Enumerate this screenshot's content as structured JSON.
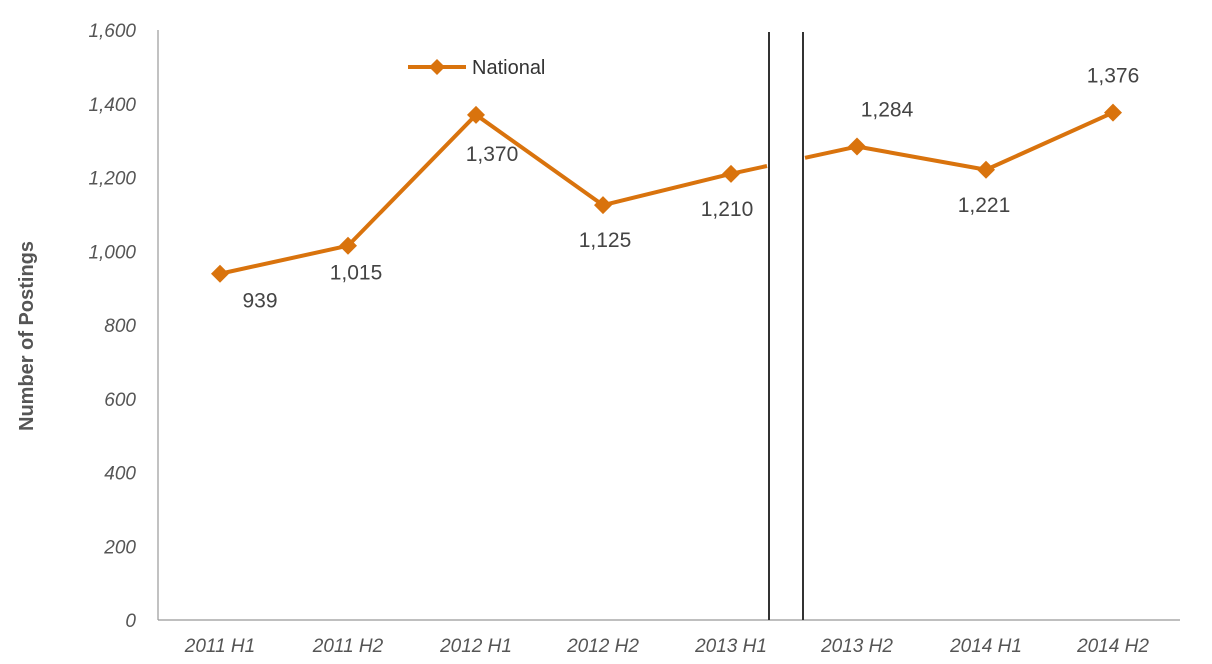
{
  "chart_data": {
    "type": "line",
    "title": "",
    "xlabel": "",
    "ylabel": "Number of Postings",
    "ylim": [
      0,
      1600
    ],
    "yticks": [
      0,
      200,
      400,
      600,
      800,
      1000,
      1200,
      1400,
      1600
    ],
    "ytick_labels": [
      "0",
      "200",
      "400",
      "600",
      "800",
      "1,000",
      "1,200",
      "1,400",
      "1,600"
    ],
    "grid": false,
    "legend": "top-center",
    "axis_break": "between 2013 H1 and 2013 H2",
    "categories": [
      "2011 H1",
      "2011 H2",
      "2012 H1",
      "2012 H2",
      "2013 H1",
      "2013 H2",
      "2014 H1",
      "2014 H2"
    ],
    "series": [
      {
        "name": "National",
        "color": "#D9730D",
        "values": [
          939,
          1015,
          1370,
          1125,
          1210,
          1284,
          1221,
          1376
        ],
        "labels": [
          "939",
          "1,015",
          "1,370",
          "1,125",
          "1,210",
          "1,284",
          "1,221",
          "1,376"
        ]
      }
    ]
  }
}
